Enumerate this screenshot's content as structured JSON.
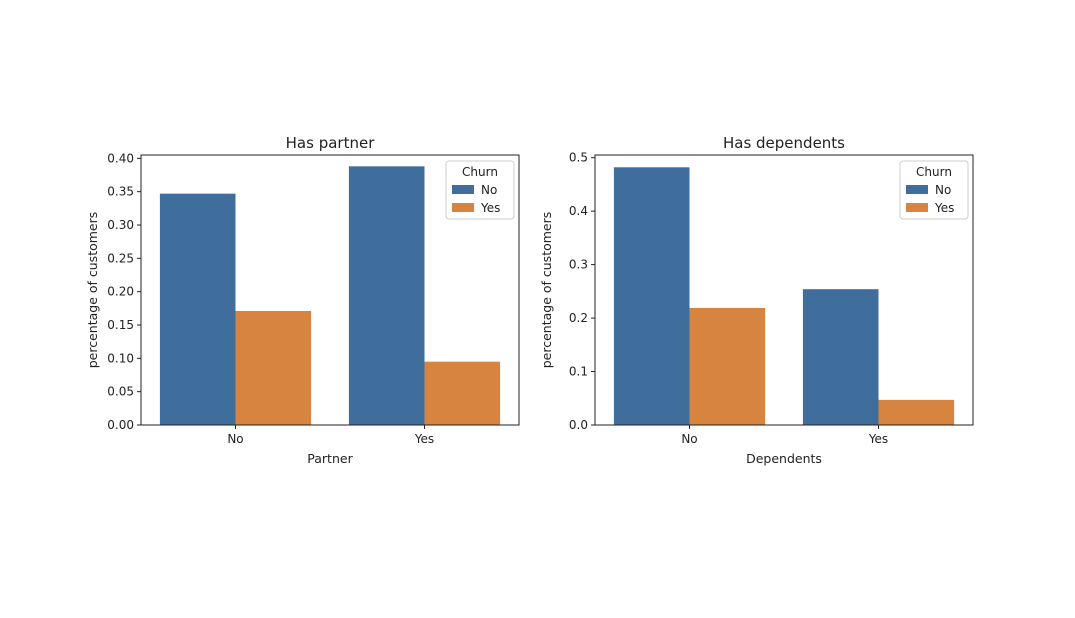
{
  "colors": {
    "No": "#3f6e9d",
    "Yes": "#d6843f",
    "axis": "#222222",
    "background": "#ffffff"
  },
  "chart_data": [
    {
      "type": "bar",
      "title": "Has partner",
      "xlabel": "Partner",
      "ylabel": "percentage of customers",
      "categories": [
        "No",
        "Yes"
      ],
      "ylim": [
        0,
        0.405
      ],
      "yticks": [
        "0.00",
        "0.05",
        "0.10",
        "0.15",
        "0.20",
        "0.25",
        "0.30",
        "0.35",
        "0.40"
      ],
      "ytick_values": [
        0,
        0.05,
        0.1,
        0.15,
        0.2,
        0.25,
        0.3,
        0.35,
        0.4
      ],
      "legend": {
        "title": "Churn",
        "placement": "top-right",
        "entries": [
          "No",
          "Yes"
        ]
      },
      "grid": false,
      "series": [
        {
          "name": "No",
          "values": [
            0.347,
            0.388
          ]
        },
        {
          "name": "Yes",
          "values": [
            0.171,
            0.095
          ]
        }
      ]
    },
    {
      "type": "bar",
      "title": "Has dependents",
      "xlabel": "Dependents",
      "ylabel": "percentage of customers",
      "categories": [
        "No",
        "Yes"
      ],
      "ylim": [
        0,
        0.505
      ],
      "yticks": [
        "0.0",
        "0.1",
        "0.2",
        "0.3",
        "0.4",
        "0.5"
      ],
      "ytick_values": [
        0,
        0.1,
        0.2,
        0.3,
        0.4,
        0.5
      ],
      "legend": {
        "title": "Churn",
        "placement": "top-right",
        "entries": [
          "No",
          "Yes"
        ]
      },
      "grid": false,
      "series": [
        {
          "name": "No",
          "values": [
            0.482,
            0.254
          ]
        },
        {
          "name": "Yes",
          "values": [
            0.219,
            0.047
          ]
        }
      ]
    }
  ]
}
